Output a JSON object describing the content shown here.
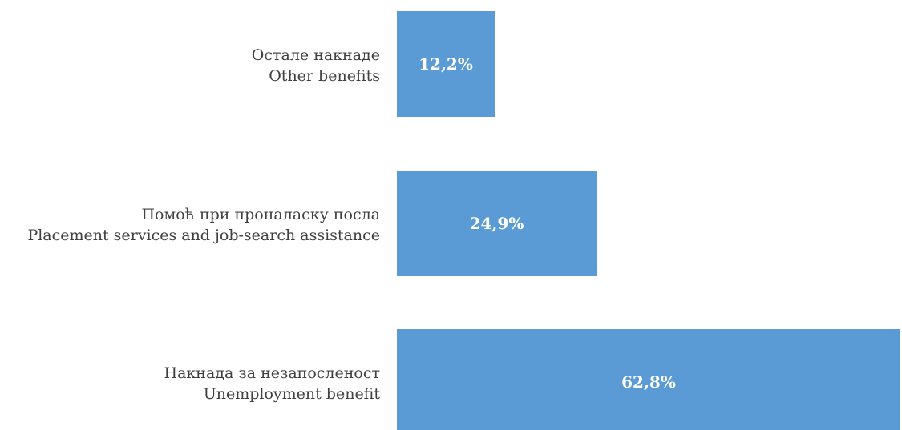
{
  "chart_data": {
    "type": "bar",
    "orientation": "horizontal",
    "title": "",
    "xlabel": "",
    "ylabel": "",
    "xlim": [
      0,
      63
    ],
    "grid": false,
    "legend": "none",
    "bar_color": "#5b9bd5",
    "categories": [
      {
        "line1": "Остале накнаде",
        "line2": "Other benefits"
      },
      {
        "line1": "Помоћ при проналаску посла",
        "line2": "Placement services and job-search assistance"
      },
      {
        "line1": "Накнада за незапосленост",
        "line2": "Unemployment benefit"
      }
    ],
    "values": [
      12.2,
      24.9,
      62.8
    ],
    "value_labels": [
      "12,2%",
      "24,9%",
      "62,8%"
    ]
  }
}
